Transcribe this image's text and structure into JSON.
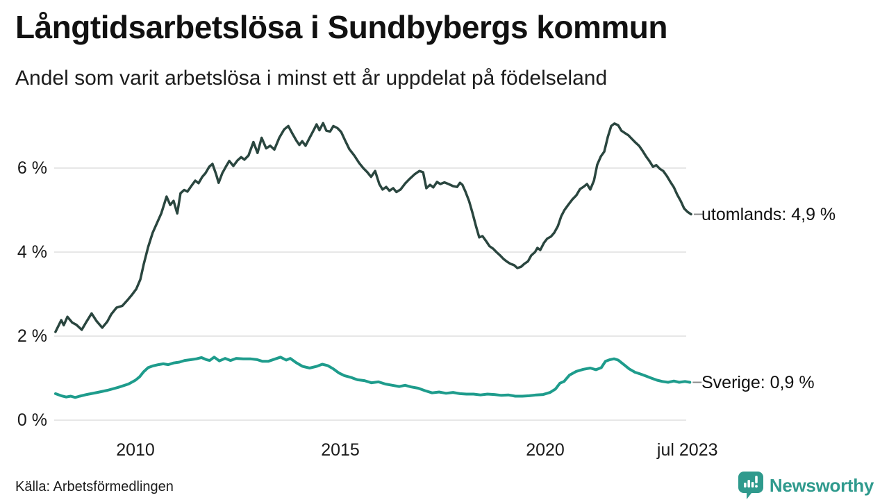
{
  "header": {
    "title": "Långtidsarbetslösa i Sundbybergs kommun",
    "subtitle": "Andel som varit arbetslösa i minst ett år uppdelat på födelseland"
  },
  "footer": {
    "source": "Källa: Arbetsförmedlingen",
    "brand": "Newsworthy"
  },
  "colors": {
    "utomlands_line": "#2a463f",
    "sverige_line": "#1e9c8c",
    "gridline": "#e7e7e7",
    "leader": "#8a8a8a",
    "brand_teal": "#2f9a8d",
    "text": "#1a1a1a"
  },
  "chart_data": {
    "type": "line",
    "title": "Långtidsarbetslösa i Sundbybergs kommun",
    "subtitle": "Andel som varit arbetslösa i minst ett år uppdelat på födelseland",
    "xlabel": "",
    "ylabel": "",
    "unit": "%",
    "grid": true,
    "legend_position": "right-end-labels",
    "xlim": [
      2008.0,
      2023.6
    ],
    "ylim": [
      0,
      7.4
    ],
    "y_ticks": [
      {
        "value": 0,
        "label": "0 %"
      },
      {
        "value": 2,
        "label": "2 %"
      },
      {
        "value": 4,
        "label": "4 %"
      },
      {
        "value": 6,
        "label": "6 %"
      }
    ],
    "x_ticks": [
      {
        "value": 2010,
        "label": "2010"
      },
      {
        "value": 2015,
        "label": "2015"
      },
      {
        "value": 2020,
        "label": "2020"
      },
      {
        "value": 2023.47,
        "label": "jul 2023"
      }
    ],
    "series": [
      {
        "name": "utomlands",
        "label": "utomlands: 4,9 %",
        "end_value": 4.9,
        "color": "#2a463f",
        "width": 3.5,
        "points": [
          [
            2008.05,
            2.1
          ],
          [
            2008.19,
            2.38
          ],
          [
            2008.25,
            2.26
          ],
          [
            2008.34,
            2.46
          ],
          [
            2008.46,
            2.32
          ],
          [
            2008.56,
            2.27
          ],
          [
            2008.69,
            2.15
          ],
          [
            2008.81,
            2.35
          ],
          [
            2008.93,
            2.54
          ],
          [
            2009.05,
            2.36
          ],
          [
            2009.19,
            2.2
          ],
          [
            2009.31,
            2.34
          ],
          [
            2009.41,
            2.52
          ],
          [
            2009.54,
            2.68
          ],
          [
            2009.68,
            2.72
          ],
          [
            2009.8,
            2.85
          ],
          [
            2009.92,
            2.99
          ],
          [
            2010.02,
            3.12
          ],
          [
            2010.12,
            3.35
          ],
          [
            2010.2,
            3.7
          ],
          [
            2010.31,
            4.12
          ],
          [
            2010.42,
            4.46
          ],
          [
            2010.53,
            4.7
          ],
          [
            2010.63,
            4.92
          ],
          [
            2010.76,
            5.32
          ],
          [
            2010.85,
            5.12
          ],
          [
            2010.93,
            5.22
          ],
          [
            2011.02,
            4.92
          ],
          [
            2011.1,
            5.4
          ],
          [
            2011.19,
            5.48
          ],
          [
            2011.27,
            5.44
          ],
          [
            2011.37,
            5.58
          ],
          [
            2011.46,
            5.7
          ],
          [
            2011.54,
            5.64
          ],
          [
            2011.63,
            5.79
          ],
          [
            2011.71,
            5.88
          ],
          [
            2011.8,
            6.03
          ],
          [
            2011.88,
            6.1
          ],
          [
            2011.97,
            5.85
          ],
          [
            2012.03,
            5.65
          ],
          [
            2012.12,
            5.88
          ],
          [
            2012.2,
            6.02
          ],
          [
            2012.29,
            6.17
          ],
          [
            2012.39,
            6.05
          ],
          [
            2012.49,
            6.18
          ],
          [
            2012.58,
            6.26
          ],
          [
            2012.66,
            6.2
          ],
          [
            2012.76,
            6.3
          ],
          [
            2012.88,
            6.62
          ],
          [
            2012.98,
            6.36
          ],
          [
            2013.08,
            6.72
          ],
          [
            2013.19,
            6.47
          ],
          [
            2013.29,
            6.53
          ],
          [
            2013.39,
            6.44
          ],
          [
            2013.51,
            6.72
          ],
          [
            2013.63,
            6.92
          ],
          [
            2013.73,
            7.0
          ],
          [
            2013.83,
            6.82
          ],
          [
            2013.93,
            6.65
          ],
          [
            2014.0,
            6.55
          ],
          [
            2014.07,
            6.64
          ],
          [
            2014.15,
            6.53
          ],
          [
            2014.25,
            6.72
          ],
          [
            2014.36,
            6.92
          ],
          [
            2014.42,
            7.04
          ],
          [
            2014.49,
            6.9
          ],
          [
            2014.58,
            7.07
          ],
          [
            2014.66,
            6.89
          ],
          [
            2014.75,
            6.87
          ],
          [
            2014.83,
            7.0
          ],
          [
            2014.93,
            6.95
          ],
          [
            2015.02,
            6.86
          ],
          [
            2015.12,
            6.65
          ],
          [
            2015.22,
            6.45
          ],
          [
            2015.34,
            6.3
          ],
          [
            2015.46,
            6.12
          ],
          [
            2015.56,
            6.0
          ],
          [
            2015.66,
            5.9
          ],
          [
            2015.75,
            5.79
          ],
          [
            2015.85,
            5.93
          ],
          [
            2015.95,
            5.62
          ],
          [
            2016.03,
            5.49
          ],
          [
            2016.12,
            5.55
          ],
          [
            2016.2,
            5.46
          ],
          [
            2016.29,
            5.52
          ],
          [
            2016.37,
            5.43
          ],
          [
            2016.47,
            5.49
          ],
          [
            2016.58,
            5.63
          ],
          [
            2016.69,
            5.74
          ],
          [
            2016.81,
            5.85
          ],
          [
            2016.93,
            5.93
          ],
          [
            2017.02,
            5.9
          ],
          [
            2017.1,
            5.52
          ],
          [
            2017.19,
            5.6
          ],
          [
            2017.27,
            5.54
          ],
          [
            2017.36,
            5.67
          ],
          [
            2017.44,
            5.62
          ],
          [
            2017.54,
            5.66
          ],
          [
            2017.64,
            5.62
          ],
          [
            2017.75,
            5.57
          ],
          [
            2017.85,
            5.55
          ],
          [
            2017.92,
            5.65
          ],
          [
            2017.98,
            5.6
          ],
          [
            2018.05,
            5.45
          ],
          [
            2018.14,
            5.22
          ],
          [
            2018.22,
            4.95
          ],
          [
            2018.31,
            4.62
          ],
          [
            2018.39,
            4.35
          ],
          [
            2018.47,
            4.38
          ],
          [
            2018.56,
            4.26
          ],
          [
            2018.64,
            4.14
          ],
          [
            2018.73,
            4.08
          ],
          [
            2018.81,
            4.0
          ],
          [
            2018.9,
            3.92
          ],
          [
            2018.98,
            3.84
          ],
          [
            2019.07,
            3.77
          ],
          [
            2019.15,
            3.72
          ],
          [
            2019.24,
            3.69
          ],
          [
            2019.32,
            3.62
          ],
          [
            2019.41,
            3.65
          ],
          [
            2019.49,
            3.72
          ],
          [
            2019.58,
            3.78
          ],
          [
            2019.66,
            3.92
          ],
          [
            2019.75,
            4.0
          ],
          [
            2019.81,
            4.1
          ],
          [
            2019.88,
            4.05
          ],
          [
            2019.97,
            4.22
          ],
          [
            2020.05,
            4.32
          ],
          [
            2020.14,
            4.37
          ],
          [
            2020.22,
            4.46
          ],
          [
            2020.31,
            4.62
          ],
          [
            2020.39,
            4.85
          ],
          [
            2020.47,
            5.0
          ],
          [
            2020.56,
            5.12
          ],
          [
            2020.66,
            5.25
          ],
          [
            2020.76,
            5.35
          ],
          [
            2020.85,
            5.5
          ],
          [
            2020.93,
            5.55
          ],
          [
            2021.02,
            5.62
          ],
          [
            2021.1,
            5.49
          ],
          [
            2021.19,
            5.7
          ],
          [
            2021.27,
            6.08
          ],
          [
            2021.36,
            6.28
          ],
          [
            2021.44,
            6.39
          ],
          [
            2021.53,
            6.75
          ],
          [
            2021.61,
            7.0
          ],
          [
            2021.69,
            7.06
          ],
          [
            2021.78,
            7.02
          ],
          [
            2021.86,
            6.89
          ],
          [
            2021.95,
            6.83
          ],
          [
            2022.03,
            6.78
          ],
          [
            2022.12,
            6.69
          ],
          [
            2022.2,
            6.61
          ],
          [
            2022.29,
            6.53
          ],
          [
            2022.37,
            6.42
          ],
          [
            2022.46,
            6.28
          ],
          [
            2022.54,
            6.17
          ],
          [
            2022.63,
            6.03
          ],
          [
            2022.71,
            6.07
          ],
          [
            2022.8,
            5.98
          ],
          [
            2022.88,
            5.93
          ],
          [
            2022.97,
            5.81
          ],
          [
            2023.05,
            5.68
          ],
          [
            2023.14,
            5.54
          ],
          [
            2023.22,
            5.37
          ],
          [
            2023.31,
            5.21
          ],
          [
            2023.39,
            5.04
          ],
          [
            2023.47,
            4.96
          ],
          [
            2023.56,
            4.9
          ]
        ]
      },
      {
        "name": "Sverige",
        "label": "Sverige: 0,9 %",
        "end_value": 0.9,
        "color": "#1e9c8c",
        "width": 4,
        "points": [
          [
            2008.05,
            0.63
          ],
          [
            2008.19,
            0.58
          ],
          [
            2008.31,
            0.55
          ],
          [
            2008.42,
            0.57
          ],
          [
            2008.53,
            0.54
          ],
          [
            2008.64,
            0.57
          ],
          [
            2008.81,
            0.61
          ],
          [
            2009.07,
            0.66
          ],
          [
            2009.32,
            0.71
          ],
          [
            2009.58,
            0.78
          ],
          [
            2009.83,
            0.86
          ],
          [
            2010.0,
            0.95
          ],
          [
            2010.1,
            1.03
          ],
          [
            2010.2,
            1.15
          ],
          [
            2010.31,
            1.25
          ],
          [
            2010.42,
            1.29
          ],
          [
            2010.56,
            1.32
          ],
          [
            2010.68,
            1.34
          ],
          [
            2010.8,
            1.32
          ],
          [
            2010.93,
            1.36
          ],
          [
            2011.07,
            1.38
          ],
          [
            2011.2,
            1.42
          ],
          [
            2011.36,
            1.44
          ],
          [
            2011.49,
            1.46
          ],
          [
            2011.61,
            1.49
          ],
          [
            2011.73,
            1.44
          ],
          [
            2011.81,
            1.42
          ],
          [
            2011.92,
            1.5
          ],
          [
            2012.05,
            1.41
          ],
          [
            2012.19,
            1.47
          ],
          [
            2012.32,
            1.42
          ],
          [
            2012.46,
            1.47
          ],
          [
            2012.63,
            1.46
          ],
          [
            2012.8,
            1.46
          ],
          [
            2012.97,
            1.44
          ],
          [
            2013.1,
            1.4
          ],
          [
            2013.24,
            1.4
          ],
          [
            2013.39,
            1.45
          ],
          [
            2013.54,
            1.5
          ],
          [
            2013.68,
            1.43
          ],
          [
            2013.78,
            1.47
          ],
          [
            2013.92,
            1.37
          ],
          [
            2014.08,
            1.28
          ],
          [
            2014.25,
            1.24
          ],
          [
            2014.42,
            1.28
          ],
          [
            2014.56,
            1.33
          ],
          [
            2014.69,
            1.3
          ],
          [
            2014.83,
            1.22
          ],
          [
            2014.97,
            1.12
          ],
          [
            2015.1,
            1.06
          ],
          [
            2015.25,
            1.02
          ],
          [
            2015.42,
            0.96
          ],
          [
            2015.59,
            0.94
          ],
          [
            2015.76,
            0.89
          ],
          [
            2015.93,
            0.91
          ],
          [
            2016.1,
            0.86
          ],
          [
            2016.27,
            0.83
          ],
          [
            2016.44,
            0.8
          ],
          [
            2016.58,
            0.83
          ],
          [
            2016.73,
            0.79
          ],
          [
            2016.9,
            0.76
          ],
          [
            2017.07,
            0.7
          ],
          [
            2017.24,
            0.65
          ],
          [
            2017.41,
            0.67
          ],
          [
            2017.58,
            0.64
          ],
          [
            2017.75,
            0.66
          ],
          [
            2017.92,
            0.63
          ],
          [
            2018.08,
            0.62
          ],
          [
            2018.25,
            0.62
          ],
          [
            2018.42,
            0.6
          ],
          [
            2018.59,
            0.62
          ],
          [
            2018.76,
            0.61
          ],
          [
            2018.93,
            0.59
          ],
          [
            2019.1,
            0.6
          ],
          [
            2019.27,
            0.57
          ],
          [
            2019.44,
            0.57
          ],
          [
            2019.61,
            0.58
          ],
          [
            2019.78,
            0.6
          ],
          [
            2019.95,
            0.61
          ],
          [
            2020.12,
            0.66
          ],
          [
            2020.25,
            0.74
          ],
          [
            2020.36,
            0.88
          ],
          [
            2020.46,
            0.92
          ],
          [
            2020.59,
            1.07
          ],
          [
            2020.76,
            1.16
          ],
          [
            2020.93,
            1.21
          ],
          [
            2021.1,
            1.24
          ],
          [
            2021.24,
            1.2
          ],
          [
            2021.37,
            1.25
          ],
          [
            2021.47,
            1.4
          ],
          [
            2021.58,
            1.44
          ],
          [
            2021.68,
            1.46
          ],
          [
            2021.78,
            1.43
          ],
          [
            2021.92,
            1.32
          ],
          [
            2022.05,
            1.22
          ],
          [
            2022.19,
            1.14
          ],
          [
            2022.32,
            1.1
          ],
          [
            2022.46,
            1.05
          ],
          [
            2022.59,
            1.0
          ],
          [
            2022.73,
            0.95
          ],
          [
            2022.86,
            0.92
          ],
          [
            2023.0,
            0.9
          ],
          [
            2023.14,
            0.93
          ],
          [
            2023.27,
            0.9
          ],
          [
            2023.41,
            0.92
          ],
          [
            2023.53,
            0.9
          ]
        ]
      }
    ]
  }
}
